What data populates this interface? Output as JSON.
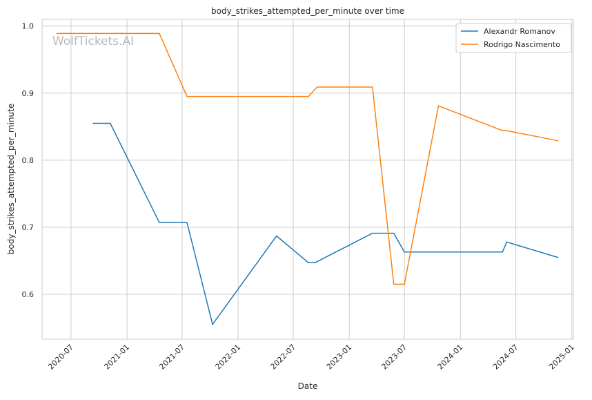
{
  "chart_data": {
    "type": "line",
    "title": "body_strikes_attempted_per_minute over time",
    "xlabel": "Date",
    "ylabel": "body_strikes_attempted_per_minute",
    "watermark": "WolfTickets.AI",
    "x_ticks": [
      "2020-07",
      "2021-01",
      "2021-07",
      "2022-01",
      "2022-07",
      "2023-01",
      "2023-07",
      "2024-01",
      "2024-07",
      "2025-01"
    ],
    "y_ticks": [
      0.6,
      0.7,
      0.8,
      0.9,
      1.0
    ],
    "y_tick_labels": [
      "0.6",
      "0.7",
      "0.8",
      "0.9",
      "1.0"
    ],
    "xlim": [
      "2020-03-28",
      "2025-01-06"
    ],
    "ylim": [
      0.533,
      1.01
    ],
    "grid": true,
    "legend": "top-right",
    "series": [
      {
        "name": "Alexandr Romanov",
        "color": "#1f77b4",
        "points": [
          {
            "x": "2020-09-12",
            "y": 0.855
          },
          {
            "x": "2020-11-07",
            "y": 0.855
          },
          {
            "x": "2021-04-17",
            "y": 0.707
          },
          {
            "x": "2021-07-17",
            "y": 0.707
          },
          {
            "x": "2021-10-09",
            "y": 0.555
          },
          {
            "x": "2022-05-07",
            "y": 0.687
          },
          {
            "x": "2022-08-20",
            "y": 0.647
          },
          {
            "x": "2022-09-10",
            "y": 0.647
          },
          {
            "x": "2023-03-18",
            "y": 0.691
          },
          {
            "x": "2023-05-27",
            "y": 0.691
          },
          {
            "x": "2023-07-01",
            "y": 0.663
          },
          {
            "x": "2024-05-18",
            "y": 0.663
          },
          {
            "x": "2024-06-01",
            "y": 0.678
          },
          {
            "x": "2024-11-16",
            "y": 0.655
          }
        ]
      },
      {
        "name": "Rodrigo Nascimento",
        "color": "#ff7f0e",
        "points": [
          {
            "x": "2020-05-16",
            "y": 0.989
          },
          {
            "x": "2021-04-17",
            "y": 0.989
          },
          {
            "x": "2021-07-17",
            "y": 0.895
          },
          {
            "x": "2022-08-20",
            "y": 0.895
          },
          {
            "x": "2022-09-17",
            "y": 0.909
          },
          {
            "x": "2023-03-18",
            "y": 0.909
          },
          {
            "x": "2023-05-27",
            "y": 0.615
          },
          {
            "x": "2023-07-01",
            "y": 0.615
          },
          {
            "x": "2023-10-21",
            "y": 0.881
          },
          {
            "x": "2024-05-18",
            "y": 0.844
          },
          {
            "x": "2024-06-01",
            "y": 0.844
          },
          {
            "x": "2024-11-16",
            "y": 0.829
          }
        ]
      }
    ]
  }
}
